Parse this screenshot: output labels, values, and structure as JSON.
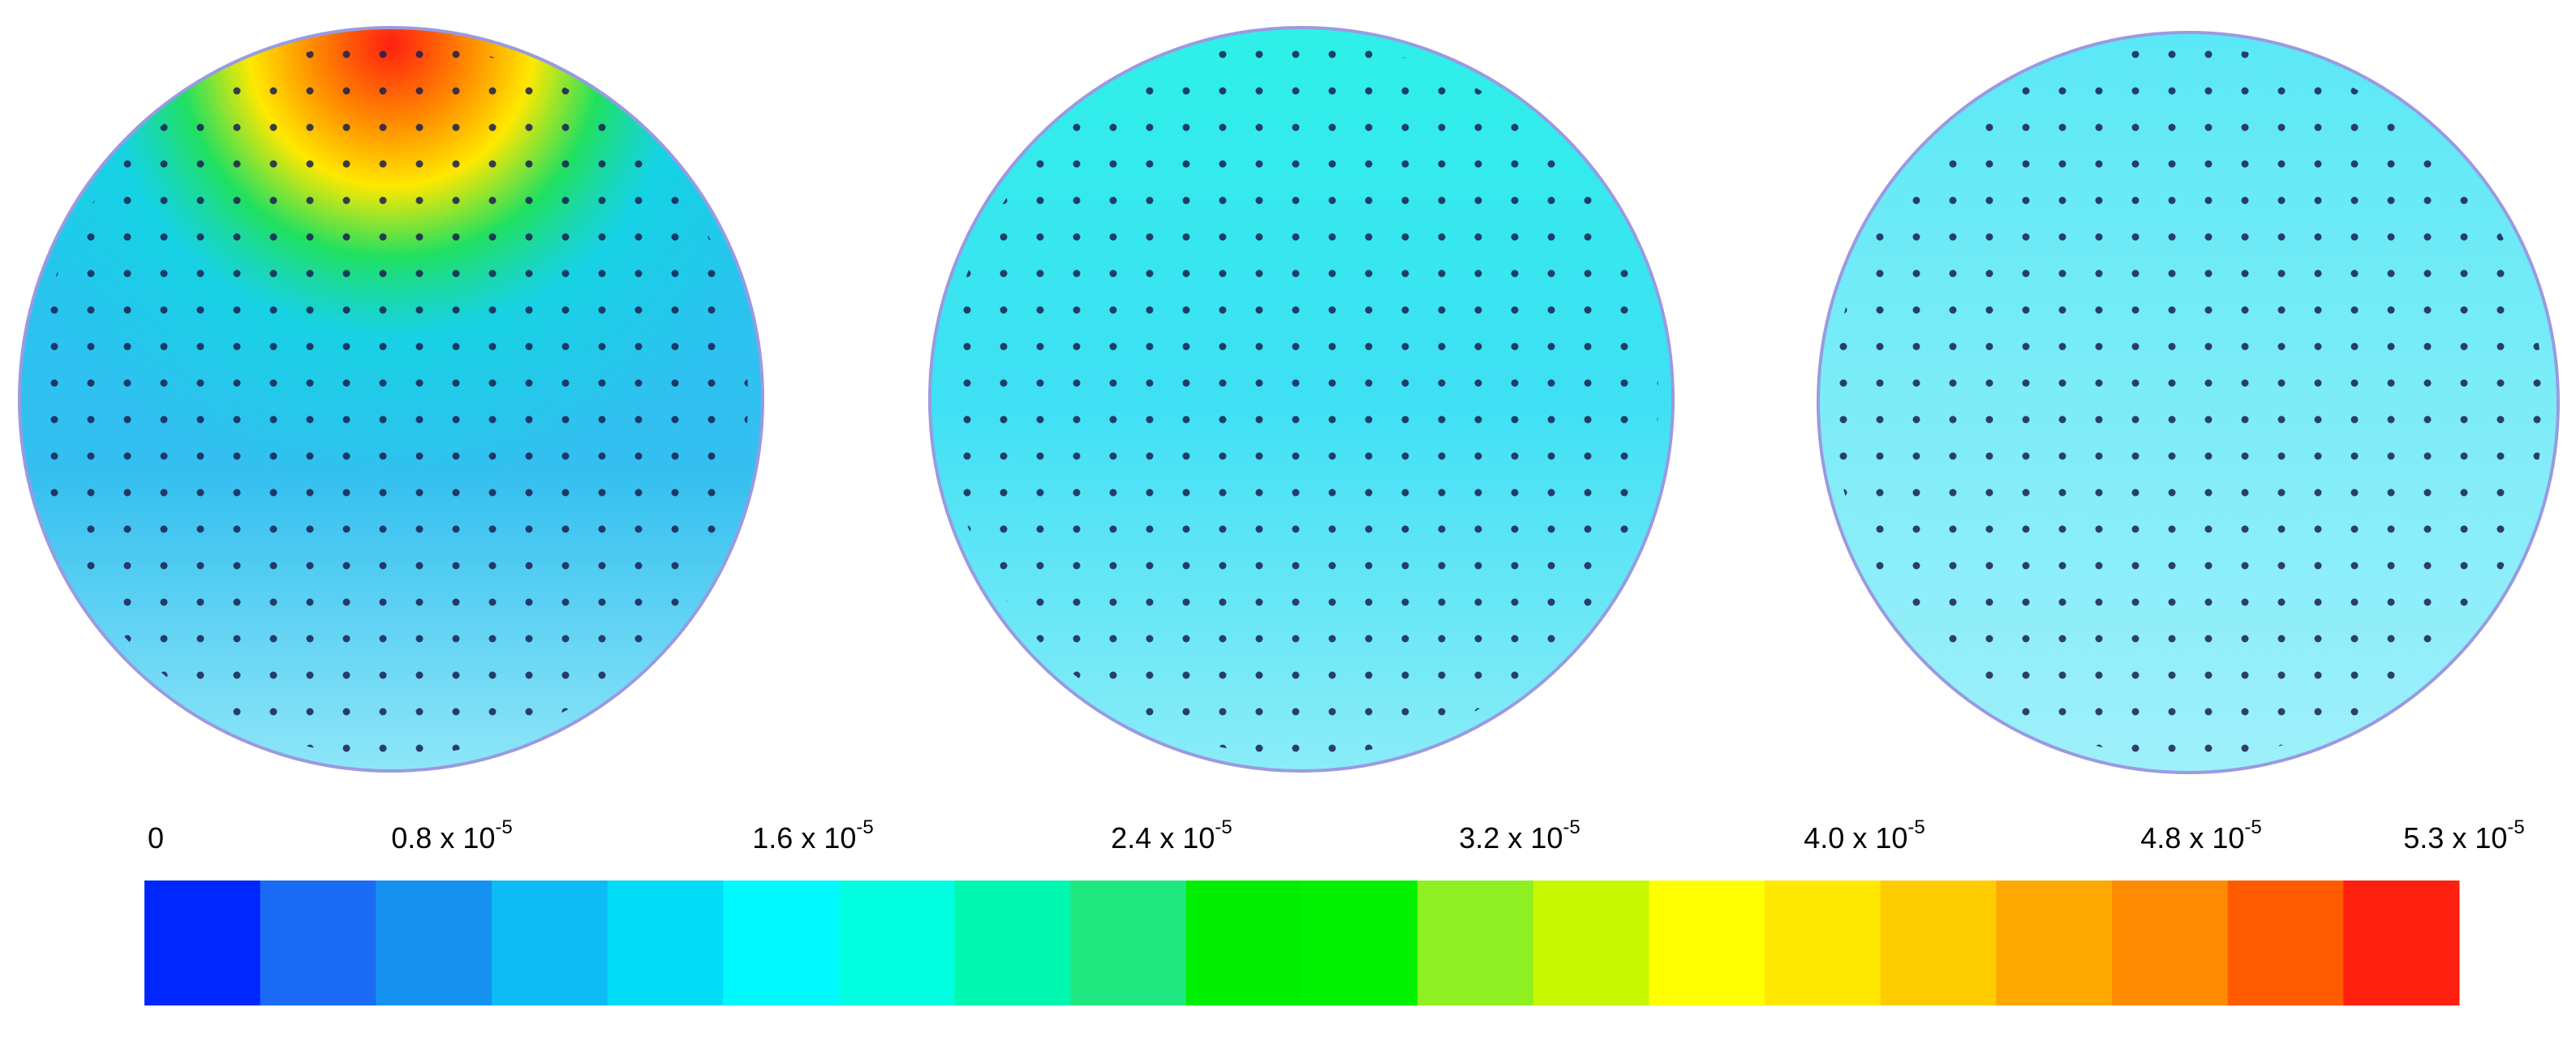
{
  "colorbar": {
    "ticks": [
      {
        "text": "0"
      },
      {
        "text": "0.8 x 10",
        "exp": "-5"
      },
      {
        "text": "1.6 x 10",
        "exp": "-5"
      },
      {
        "text": "2.4 x 10",
        "exp": "-5"
      },
      {
        "text": "3.2 x 10",
        "exp": "-5"
      },
      {
        "text": "4.0 x 10",
        "exp": "-5"
      },
      {
        "text": "4.8 x 10",
        "exp": "-5"
      },
      {
        "text": "5.3 x 10",
        "exp": "-5"
      }
    ],
    "colors": [
      "#0027ff",
      "#1a6cf5",
      "#1592f0",
      "#0dbcf5",
      "#00dcf8",
      "#00f8ff",
      "#00ffe0",
      "#00f7b0",
      "#20e880",
      "#00ef00",
      "#00f200",
      "#8ef020",
      "#c8f800",
      "#ffff00",
      "#ffe800",
      "#ffcc00",
      "#ffa800",
      "#ff8c00",
      "#ff5a00",
      "#ff2010"
    ]
  }
}
